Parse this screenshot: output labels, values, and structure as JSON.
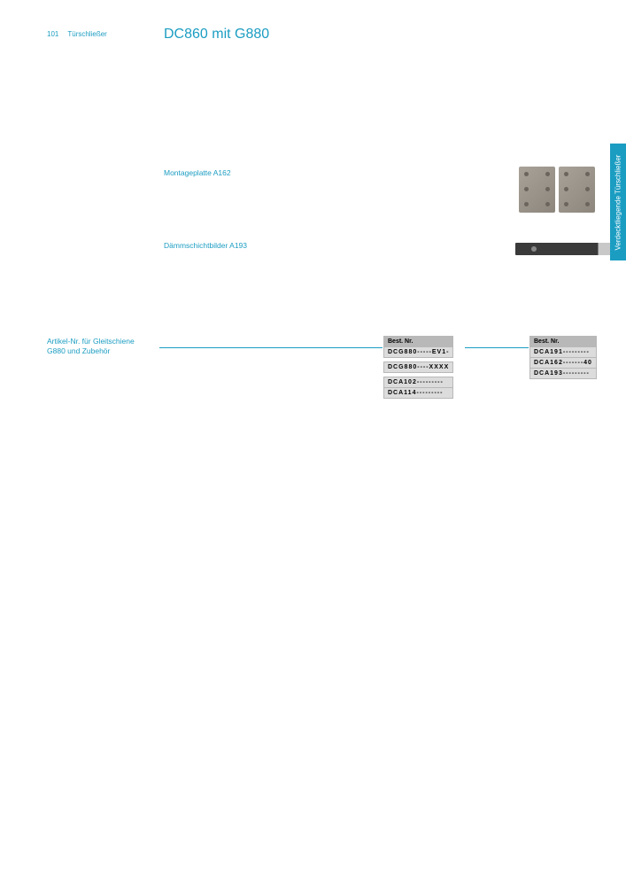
{
  "header": {
    "pageNum": "101",
    "section": "Türschließer",
    "title": "DC860 mit G880"
  },
  "sections": {
    "s1": {
      "heading": "Montageplatte A162"
    },
    "s2": {
      "heading": "Dämmschichtbilder A193"
    }
  },
  "sideTab": "Verdecktliegende Türschließer",
  "leftLabel": {
    "line1": "Artikel-Nr. für Gleitschiene",
    "line2": "G880 und Zubehör"
  },
  "tables": {
    "header": "Best. Nr.",
    "t1": {
      "rows": [
        "DCG880-----EV1-",
        "DCG880----XXXX",
        "DCA102---------",
        "DCA114---------"
      ],
      "gapsAfter": [
        0,
        1
      ]
    },
    "t2": {
      "rows": [
        "DCA191---------",
        "DCA162-------40",
        "DCA193---------"
      ],
      "gapsAfter": []
    }
  },
  "colors": {
    "accent": "#1b9dc2"
  }
}
